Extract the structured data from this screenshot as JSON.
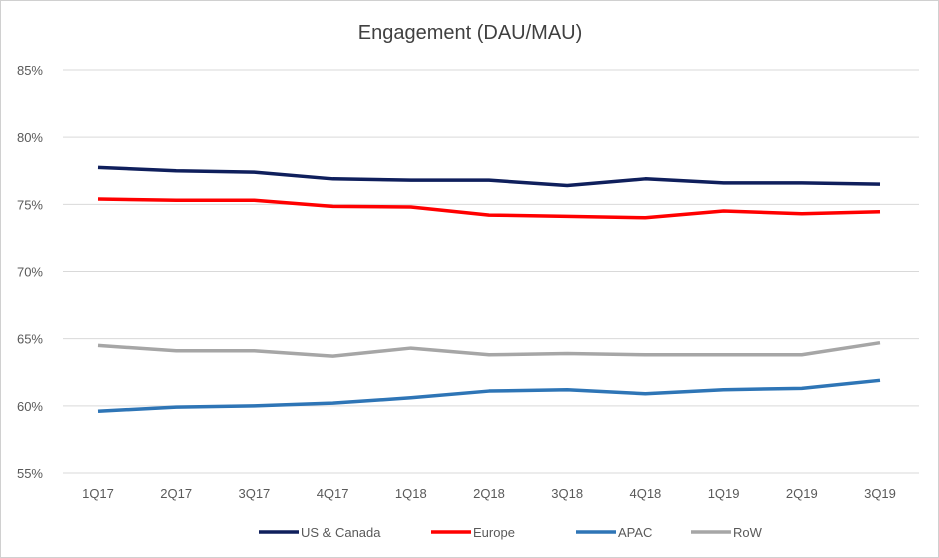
{
  "chart_data": {
    "type": "line",
    "title": "Engagement (DAU/MAU)",
    "xlabel": "",
    "ylabel": "",
    "categories": [
      "1Q17",
      "2Q17",
      "3Q17",
      "4Q17",
      "1Q18",
      "2Q18",
      "3Q18",
      "4Q18",
      "1Q19",
      "2Q19",
      "3Q19"
    ],
    "ylim": [
      55,
      85
    ],
    "yticks": [
      55,
      60,
      65,
      70,
      75,
      80,
      85
    ],
    "ytick_labels": [
      "55%",
      "60%",
      "65%",
      "70%",
      "75%",
      "80%",
      "85%"
    ],
    "grid": true,
    "legend": "bottom",
    "series": [
      {
        "name": "US & Canada",
        "color": "#0f1f5c",
        "values": [
          77.75,
          77.5,
          77.4,
          76.9,
          76.8,
          76.8,
          76.4,
          76.9,
          76.6,
          76.6,
          76.5
        ]
      },
      {
        "name": "Europe",
        "color": "#ff0000",
        "values": [
          75.4,
          75.3,
          75.3,
          74.85,
          74.8,
          74.2,
          74.1,
          74.0,
          74.5,
          74.3,
          74.45
        ]
      },
      {
        "name": "APAC",
        "color": "#2e75b6",
        "values": [
          59.6,
          59.9,
          60.0,
          60.2,
          60.6,
          61.1,
          61.2,
          60.9,
          61.2,
          61.3,
          61.9
        ]
      },
      {
        "name": "RoW",
        "color": "#a6a6a6",
        "values": [
          64.5,
          64.1,
          64.1,
          63.7,
          64.3,
          63.8,
          63.9,
          63.8,
          63.8,
          63.8,
          64.7
        ]
      }
    ]
  }
}
